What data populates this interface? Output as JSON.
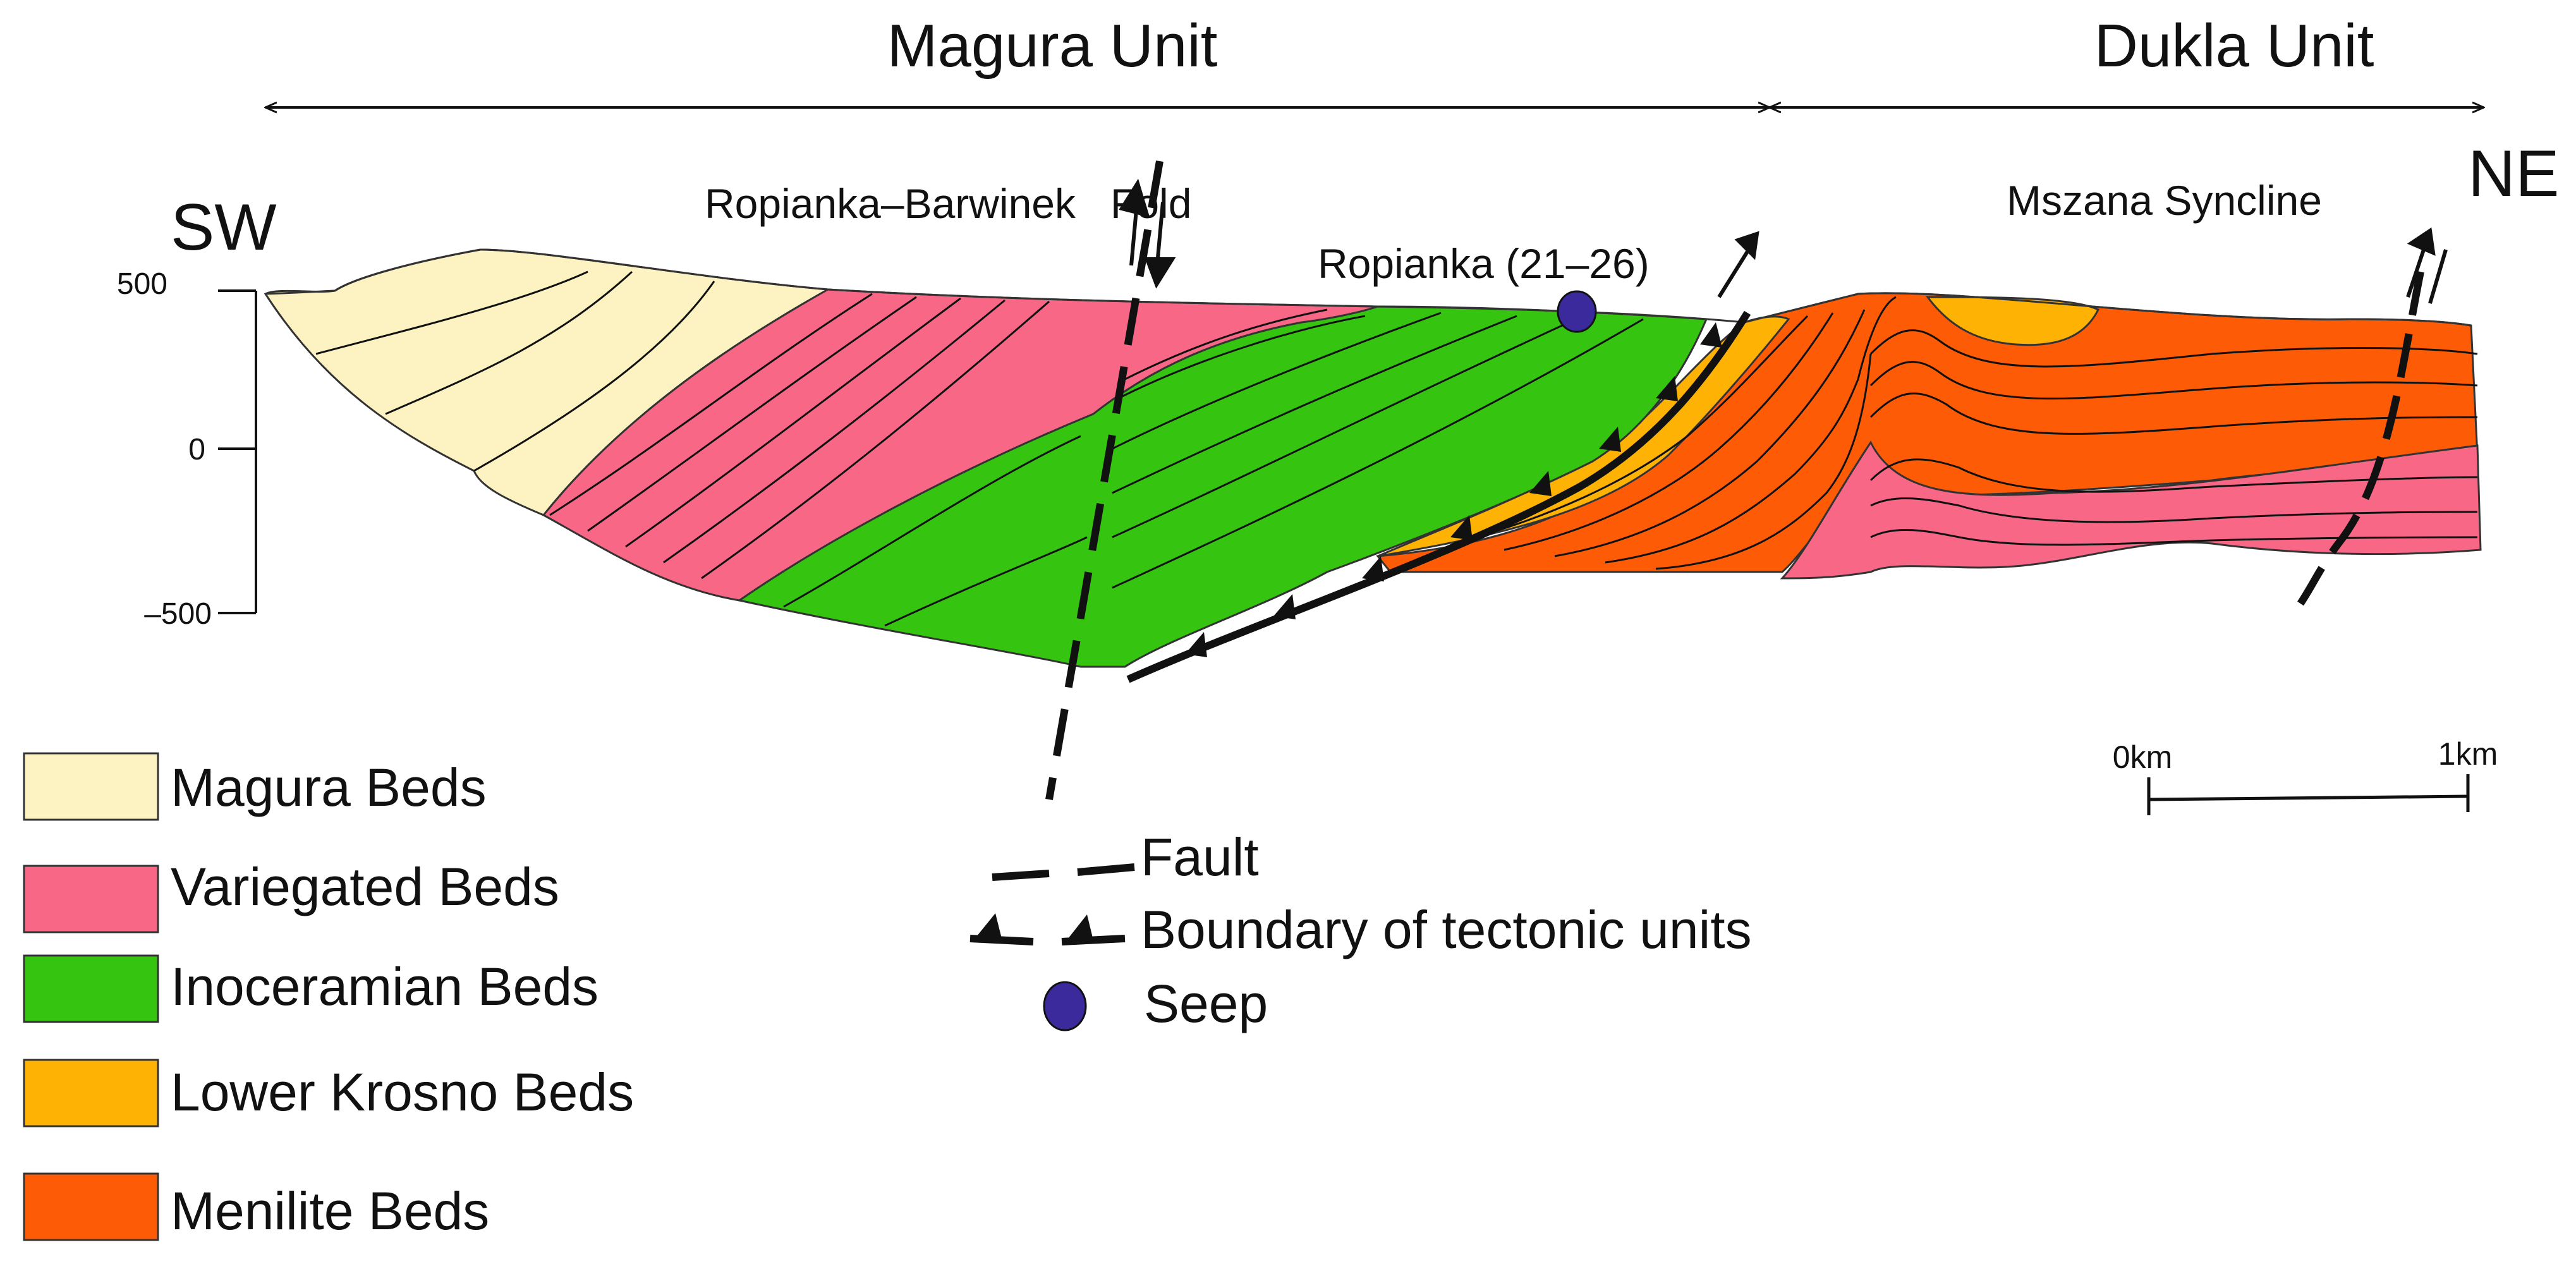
{
  "units": {
    "magura": "Magura Unit",
    "dukla": "Dukla Unit"
  },
  "directions": {
    "sw": "SW",
    "ne": "NE"
  },
  "structures": {
    "fold": "Ropianka–Barwinek   Fold",
    "seep_site": "Ropianka (21–26)",
    "syncline": "Mszana Syncline"
  },
  "axis": {
    "ticks": [
      "500",
      "0",
      "–500"
    ]
  },
  "scale_bar": {
    "start": "0km",
    "end": "1km"
  },
  "legend": [
    {
      "label": "Magura Beds",
      "color": "#fdf3c2"
    },
    {
      "label": "Variegated Beds",
      "color": "#f86886"
    },
    {
      "label": "Inoceramian Beds",
      "color": "#35c40f"
    },
    {
      "label": "Lower Krosno Beds",
      "color": "#fdb204"
    },
    {
      "label": "Menilite Beds",
      "color": "#fd5b06"
    }
  ],
  "symbols": {
    "fault": "Fault",
    "boundary": "Boundary of tectonic units",
    "seep": "Seep"
  },
  "colors": {
    "seep": "#3a2a9c",
    "line": "#111111"
  }
}
